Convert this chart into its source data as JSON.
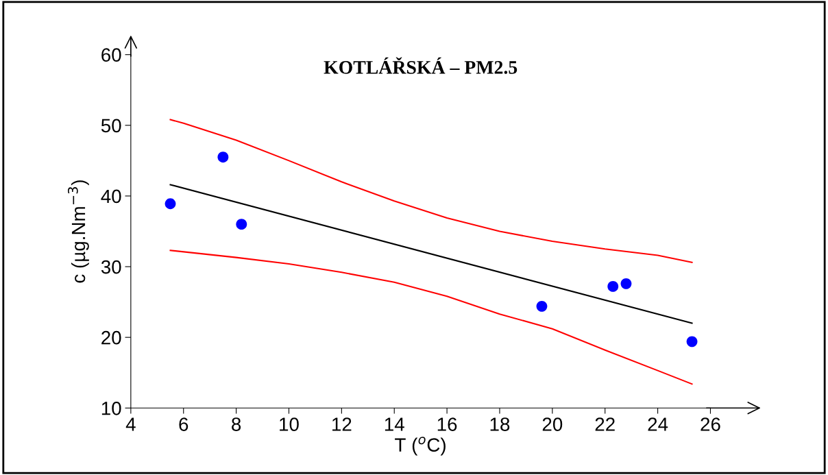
{
  "chart_data": {
    "type": "scatter",
    "title": "KOTLÁŘSKÁ – PM2.5",
    "xlabel": "T ($^{o}$C)",
    "ylabel": "c (µg.Nm$^{−3}$)",
    "xlim": [
      4,
      26
    ],
    "xticks": [
      4,
      6,
      8,
      10,
      12,
      14,
      16,
      18,
      20,
      22,
      24,
      26
    ],
    "ylim": [
      10,
      60
    ],
    "yticks": [
      10,
      20,
      30,
      40,
      50,
      60
    ],
    "grid": false,
    "series": [
      {
        "type": "scatter",
        "marker": "circle",
        "color": "#0000ff",
        "x": [
          5.5,
          7.5,
          8.2,
          19.6,
          22.3,
          22.8,
          25.3
        ],
        "values": [
          38.9,
          45.5,
          36.0,
          24.4,
          27.2,
          27.6,
          19.4
        ]
      },
      {
        "type": "line",
        "color": "#000000",
        "x": [
          5.5,
          25.3
        ],
        "values": [
          41.6,
          22.0
        ]
      },
      {
        "type": "line",
        "color": "#ff0000",
        "x": [
          5.5,
          6,
          8,
          10,
          12,
          14,
          16,
          18,
          20,
          22,
          24,
          25.3
        ],
        "values": [
          50.8,
          50.3,
          47.9,
          45.0,
          42.0,
          39.3,
          36.9,
          35.0,
          33.6,
          32.5,
          31.6,
          30.6
        ]
      },
      {
        "type": "line",
        "color": "#ff0000",
        "x": [
          5.5,
          8,
          10,
          12,
          14,
          16,
          18,
          20,
          22,
          24,
          25.3
        ],
        "values": [
          32.3,
          31.3,
          30.4,
          29.2,
          27.8,
          25.8,
          23.3,
          21.2,
          18.2,
          15.3,
          13.4
        ]
      }
    ]
  }
}
